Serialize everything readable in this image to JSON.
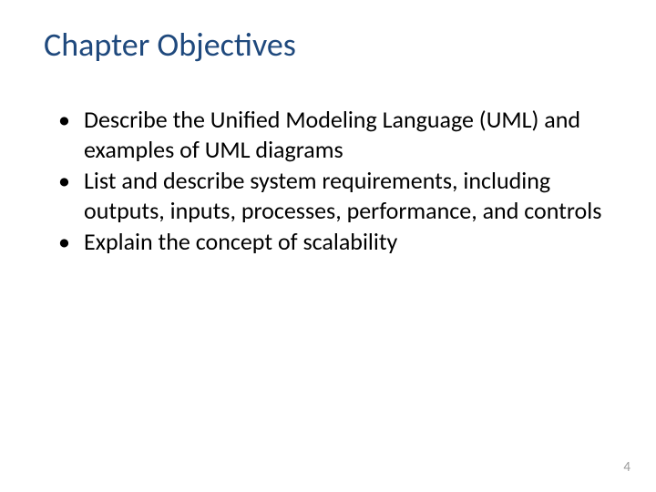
{
  "slide": {
    "title": "Chapter Objectives",
    "bullets": [
      "Describe the Unified Modeling Language (UML) and examples of UML diagrams",
      "List and describe system requirements, including outputs, inputs, processes, performance, and controls",
      "Explain the concept of scalability"
    ],
    "page_number": "4"
  },
  "styling": {
    "title_color": "#1f497d",
    "title_fontsize": 36,
    "body_color": "#000000",
    "body_fontsize": 26,
    "page_number_color": "#9c9c9c",
    "background_color": "#ffffff"
  }
}
